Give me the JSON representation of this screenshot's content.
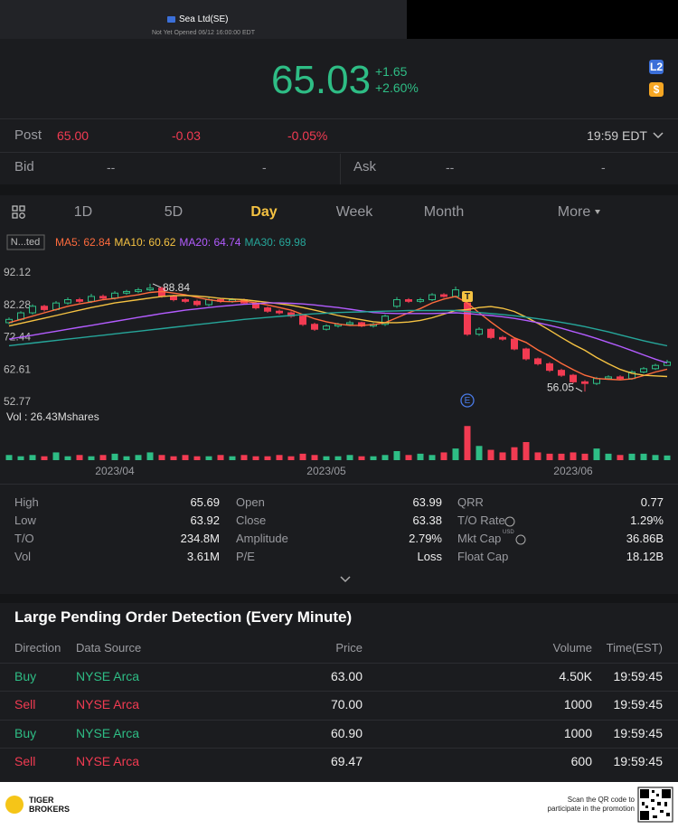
{
  "header": {
    "title": "Sea Ltd(SE)",
    "subtitle": "Not Yet Opened 06/12 16:00:00 EDT"
  },
  "quote": {
    "price": "65.03",
    "change": "+1.65",
    "change_pct": "+2.60%",
    "badges": [
      "L2",
      "$"
    ]
  },
  "post": {
    "label": "Post",
    "price": "65.00",
    "change": "-0.03",
    "change_pct": "-0.05%",
    "time": "19:59 EDT"
  },
  "bid": {
    "label": "Bid",
    "price": "--",
    "size": "-"
  },
  "ask": {
    "label": "Ask",
    "price": "--",
    "size": "-"
  },
  "tabs": {
    "items": [
      "1D",
      "5D",
      "Day",
      "Week",
      "Month",
      "More"
    ],
    "active": 2
  },
  "chart_data": {
    "type": "candlestick",
    "categories": [
      null,
      null,
      null,
      null,
      null,
      null,
      null,
      null,
      null,
      "2023/04",
      null,
      null,
      null,
      null,
      null,
      null,
      null,
      null,
      null,
      null,
      null,
      null,
      null,
      null,
      null,
      null,
      null,
      "2023/05",
      null,
      null,
      null,
      null,
      null,
      null,
      null,
      null,
      null,
      null,
      null,
      null,
      null,
      null,
      null,
      null,
      null,
      null,
      null,
      null,
      "2023/06",
      null,
      null,
      null,
      null,
      null,
      null,
      null,
      null
    ],
    "ylim": [
      52.77,
      92.12
    ],
    "yticks": [
      92.12,
      82.28,
      72.44,
      62.61,
      52.77
    ],
    "up_color": "#2ebd85",
    "down_color": "#f23b52",
    "candles": [
      [
        77,
        78.6,
        76.5,
        78
      ],
      [
        78,
        80.5,
        77.6,
        80
      ],
      [
        80,
        82.6,
        79.5,
        82
      ],
      [
        82,
        82.5,
        80.4,
        81
      ],
      [
        81,
        83.6,
        80.6,
        83
      ],
      [
        83,
        84.7,
        82.5,
        84
      ],
      [
        84,
        84.6,
        83,
        83.5
      ],
      [
        83.5,
        85.8,
        83,
        85
      ],
      [
        85,
        85.6,
        84,
        84.5
      ],
      [
        84.5,
        86.6,
        84,
        86
      ],
      [
        86,
        87,
        85.5,
        86.5
      ],
      [
        86.5,
        87.6,
        86,
        87
      ],
      [
        87,
        88.84,
        86.6,
        87.5
      ],
      [
        87.5,
        88,
        84.6,
        85
      ],
      [
        85,
        85.5,
        83.5,
        84
      ],
      [
        84,
        84.5,
        83,
        83.5
      ],
      [
        83.5,
        84,
        82,
        82.5
      ],
      [
        82.5,
        84.6,
        82,
        84
      ],
      [
        84,
        84.5,
        83,
        83.5
      ],
      [
        83.5,
        84.5,
        83,
        84
      ],
      [
        84,
        84.3,
        82.6,
        83
      ],
      [
        83,
        83.4,
        81,
        81.5
      ],
      [
        81.5,
        82,
        80,
        80.5
      ],
      [
        80.5,
        81,
        79.5,
        80
      ],
      [
        80,
        80.5,
        78.5,
        79
      ],
      [
        79,
        79.4,
        76,
        76.5
      ],
      [
        76.5,
        77,
        74.5,
        75
      ],
      [
        75,
        76.5,
        74.6,
        76
      ],
      [
        76,
        77,
        75.5,
        76.5
      ],
      [
        76.5,
        77.6,
        76,
        77
      ],
      [
        77,
        77.3,
        75.6,
        76
      ],
      [
        76,
        77,
        75.5,
        76.5
      ],
      [
        76.5,
        79.5,
        76,
        79
      ],
      [
        82,
        84.8,
        81.5,
        84
      ],
      [
        84,
        84.5,
        83,
        83.5
      ],
      [
        83.5,
        84.6,
        83,
        84
      ],
      [
        84,
        86,
        83.6,
        85.5
      ],
      [
        85.5,
        86,
        84.6,
        85
      ],
      [
        85,
        88,
        84.6,
        87
      ],
      [
        83,
        83.5,
        73,
        73.5
      ],
      [
        73.5,
        75.6,
        73,
        75
      ],
      [
        75,
        75.4,
        72,
        72.5
      ],
      [
        72.5,
        73,
        71.5,
        72
      ],
      [
        72,
        72.4,
        68.6,
        69
      ],
      [
        69,
        69.4,
        65.5,
        66
      ],
      [
        66,
        66.4,
        64,
        64.5
      ],
      [
        64.5,
        65,
        62,
        62.5
      ],
      [
        62.5,
        63,
        60.5,
        61
      ],
      [
        61,
        61.4,
        58.5,
        59
      ],
      [
        59,
        59.5,
        56.05,
        58.5
      ],
      [
        58.5,
        60.5,
        58,
        60
      ],
      [
        60,
        61,
        59.6,
        60.5
      ],
      [
        60.5,
        61,
        59.5,
        60
      ],
      [
        60,
        62.5,
        59.6,
        62
      ],
      [
        62,
        63.5,
        61.6,
        63
      ],
      [
        63,
        64.5,
        62.6,
        64
      ],
      [
        63.99,
        65.69,
        63.92,
        65.03
      ]
    ],
    "high_index": 12,
    "low_index": 49,
    "series": [
      {
        "name": "MA5: 62.84",
        "color": "#ff6b3d",
        "values": [
          77,
          78,
          79,
          80,
          81,
          82,
          82.7,
          83.3,
          84,
          84.4,
          85,
          85.5,
          86.2,
          86.5,
          86,
          85.5,
          84.7,
          84,
          83.5,
          83.4,
          83.6,
          83,
          82.4,
          81.6,
          80.8,
          79.5,
          78.2,
          77.3,
          76.6,
          76.2,
          76.2,
          76.4,
          77,
          78.5,
          80,
          81.3,
          83,
          84.2,
          85,
          83,
          80,
          77.2,
          74.6,
          72.4,
          71,
          68.7,
          66.8,
          64.6,
          62.7,
          61,
          60,
          59.8,
          59.6,
          59.9,
          60.9,
          62,
          62.84
        ]
      },
      {
        "name": "MA10: 60.62",
        "color": "#f5c242",
        "values": [
          76,
          76.8,
          77.6,
          78.4,
          79.2,
          80,
          80.8,
          81.6,
          82.3,
          83,
          83.5,
          84,
          84.5,
          85,
          85.2,
          85.3,
          85.1,
          84.8,
          84.4,
          84.2,
          84,
          83.6,
          83.2,
          82.8,
          82.3,
          81.6,
          80.8,
          80,
          79.2,
          78.5,
          77.9,
          77.3,
          77,
          77,
          77.2,
          77.7,
          78.5,
          79.6,
          80.7,
          81,
          81.6,
          81.9,
          81.4,
          80.4,
          78.7,
          76.8,
          74.7,
          72.5,
          70.4,
          68.6,
          66.4,
          64.5,
          62.8,
          61.6,
          61,
          60.8,
          60.62
        ]
      },
      {
        "name": "MA20: 64.74",
        "color": "#b35cff",
        "values": [
          72,
          72.6,
          73.2,
          73.8,
          74.4,
          75,
          75.6,
          76.2,
          76.8,
          77.4,
          78,
          78.6,
          79.2,
          79.8,
          80.3,
          80.8,
          81.2,
          81.6,
          82,
          82.3,
          82.6,
          82.8,
          83,
          83,
          82.9,
          82.7,
          82.4,
          82,
          81.6,
          81.1,
          80.6,
          80.1,
          79.9,
          79.8,
          79.8,
          79.8,
          79.8,
          79.9,
          80,
          79.8,
          79.5,
          79.2,
          78.8,
          78.3,
          77.7,
          77,
          76.2,
          75.3,
          74.3,
          73.3,
          72.2,
          71,
          69.8,
          68.5,
          67.2,
          65.9,
          64.74
        ]
      },
      {
        "name": "MA30: 69.98",
        "color": "#26a69a",
        "values": [
          70,
          70.4,
          70.8,
          71.2,
          71.6,
          72,
          72.4,
          72.8,
          73.2,
          73.6,
          74,
          74.4,
          74.8,
          75.2,
          75.6,
          76,
          76.4,
          76.8,
          77.2,
          77.6,
          78,
          78.3,
          78.6,
          78.9,
          79.2,
          79.5,
          79.7,
          79.9,
          80.1,
          80.2,
          80.3,
          80.4,
          80.5,
          80.6,
          80.7,
          80.7,
          80.7,
          80.7,
          80.7,
          80.4,
          80.1,
          79.8,
          79.5,
          79.1,
          78.7,
          78.2,
          77.7,
          77.1,
          76.5,
          75.8,
          75,
          74.2,
          73.3,
          72.4,
          71.5,
          70.7,
          69.98
        ]
      }
    ],
    "volume": [
      4,
      3,
      4,
      3,
      6,
      3,
      4,
      3,
      4,
      5,
      3,
      4,
      6,
      4,
      3,
      4,
      3,
      3,
      4,
      3,
      4,
      3,
      3,
      4,
      3,
      5,
      4,
      3,
      3,
      4,
      3,
      3,
      4,
      7,
      4,
      5,
      4,
      6,
      9,
      26.43,
      11,
      8,
      6,
      10,
      14,
      6,
      5,
      5,
      6,
      5,
      9,
      5,
      4,
      5,
      5,
      4,
      3.61
    ],
    "volume_ylim": [
      0,
      28
    ],
    "volume_label": "Vol : 26.43Mshares",
    "range_label": "N...ted",
    "event_index": 39,
    "event_marker": "E",
    "trade_marker": "T"
  },
  "stats": {
    "columns": [
      [
        [
          "High",
          "65.69"
        ],
        [
          "Low",
          "63.92"
        ],
        [
          "T/O",
          "234.8M"
        ],
        [
          "Vol",
          "3.61M"
        ]
      ],
      [
        [
          "Open",
          "63.99"
        ],
        [
          "Close",
          "63.38"
        ],
        [
          "Amplitude",
          "2.79%"
        ],
        [
          "P/E",
          "Loss"
        ]
      ],
      [
        [
          "QRR",
          "0.77"
        ],
        [
          "T/O Rate",
          "1.29%"
        ],
        [
          "Mkt Cap",
          "36.86B"
        ],
        [
          "Float Cap",
          "18.12B"
        ]
      ]
    ],
    "unit_note": "USD"
  },
  "orders": {
    "title": "Large Pending Order Detection (Every Minute)",
    "columns": [
      "Direction",
      "Data Source",
      "Price",
      "Volume",
      "Time(EST)"
    ],
    "rows": [
      {
        "side": "Buy",
        "source": "NYSE Arca",
        "price": "63.00",
        "volume": "4.50K",
        "time": "19:59:45",
        "color": "#2ebd85"
      },
      {
        "side": "Sell",
        "source": "NYSE Arca",
        "price": "70.00",
        "volume": "1000",
        "time": "19:59:45",
        "color": "#f23b52"
      },
      {
        "side": "Buy",
        "source": "NYSE Arca",
        "price": "60.90",
        "volume": "1000",
        "time": "19:59:45",
        "color": "#2ebd85"
      },
      {
        "side": "Sell",
        "source": "NYSE Arca",
        "price": "69.47",
        "volume": "600",
        "time": "19:59:45",
        "color": "#f23b52"
      }
    ]
  },
  "footer": {
    "brand": [
      "TIGER",
      "BROKERS"
    ],
    "promo": [
      "Scan the QR code to",
      "participate in the promotion"
    ]
  }
}
